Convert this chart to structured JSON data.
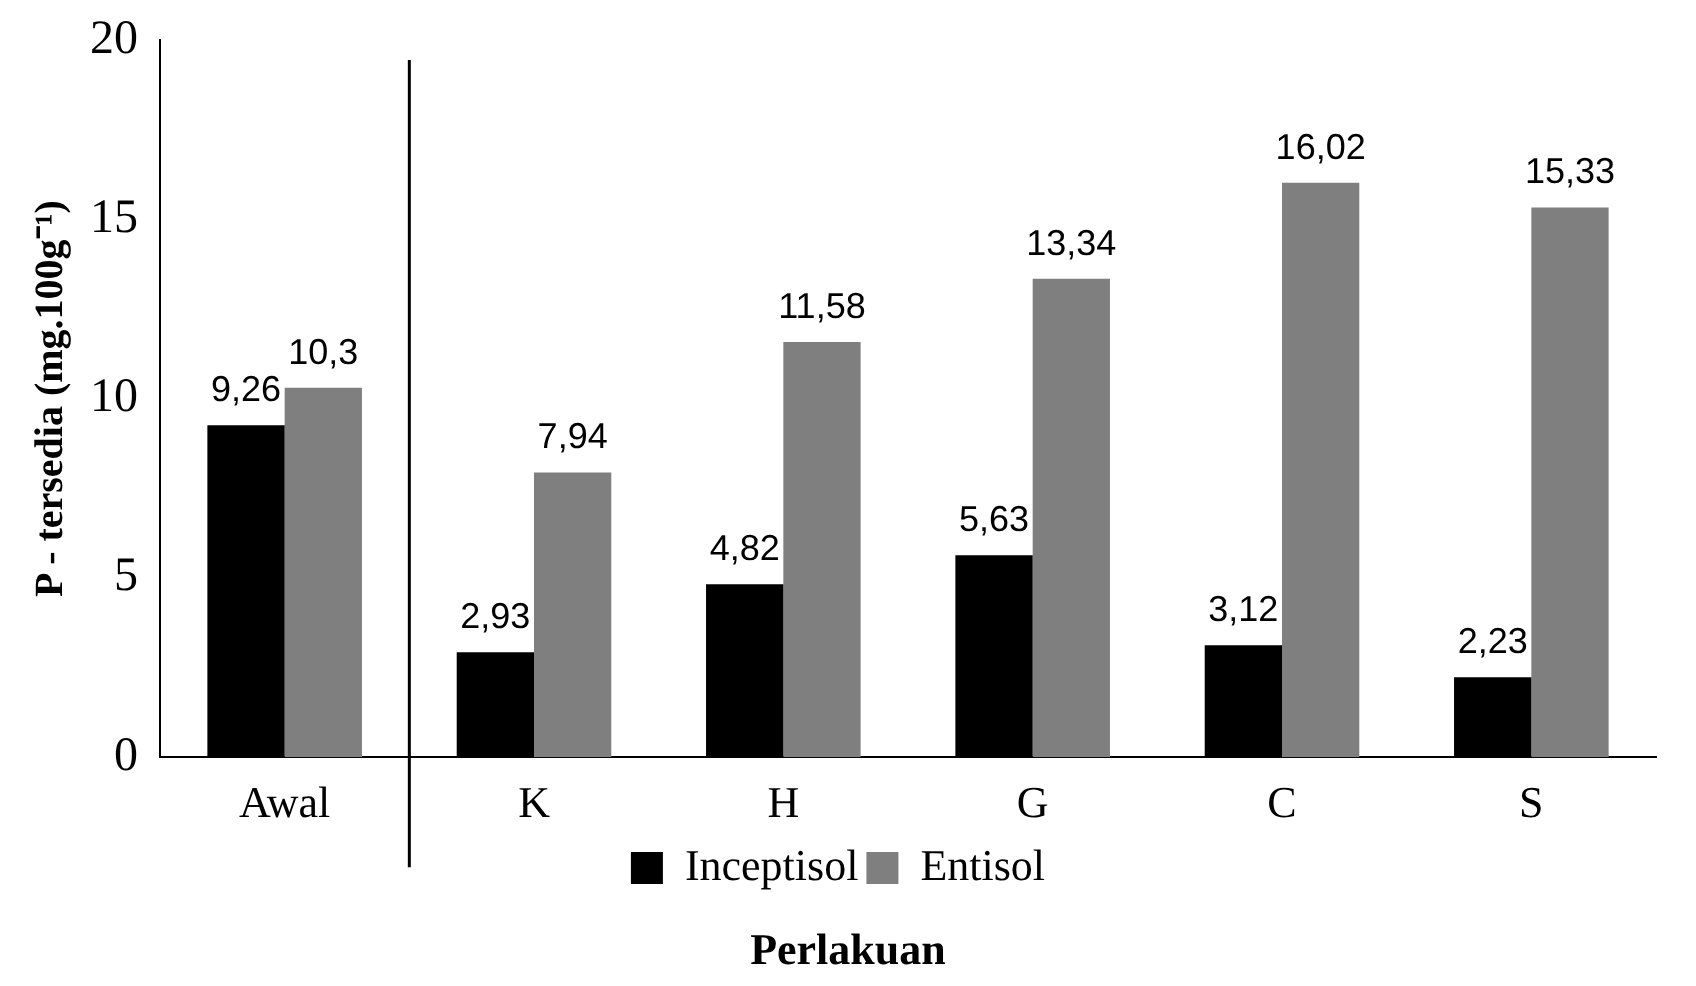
{
  "chart_data": {
    "type": "bar",
    "ylabel": "P - tersedia (mg.100g⁻¹)",
    "xlabel": "Perlakuan",
    "categories": [
      "Awal",
      "K",
      "H",
      "G",
      "C",
      "S"
    ],
    "series": [
      {
        "name": "Inceptisol",
        "color": "#000000",
        "values": [
          9.26,
          2.93,
          4.82,
          5.63,
          3.12,
          2.23
        ],
        "value_labels": [
          "9,26",
          "2,93",
          "4,82",
          "5,63",
          "3,12",
          "2,23"
        ]
      },
      {
        "name": "Entisol",
        "color": "#7f7f7f",
        "values": [
          10.3,
          7.94,
          11.58,
          13.34,
          16.02,
          15.33
        ],
        "value_labels": [
          "10,3",
          "7,94",
          "11,58",
          "13,34",
          "16,02",
          "15,33"
        ]
      }
    ],
    "ylim": [
      0,
      20
    ],
    "yticks": [
      0,
      5,
      10,
      15,
      20
    ],
    "grid": false,
    "legend": "bottom"
  }
}
